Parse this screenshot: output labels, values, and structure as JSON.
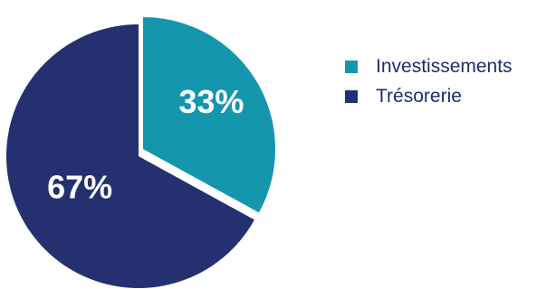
{
  "chart_data": {
    "type": "pie",
    "categories": [
      "Investissements",
      "Trésorerie"
    ],
    "values": [
      33,
      67
    ],
    "labels": [
      "33%",
      "67%"
    ],
    "colors": [
      "#1497ad",
      "#243070"
    ],
    "exploded": "Investissements",
    "legend_position": "right"
  }
}
